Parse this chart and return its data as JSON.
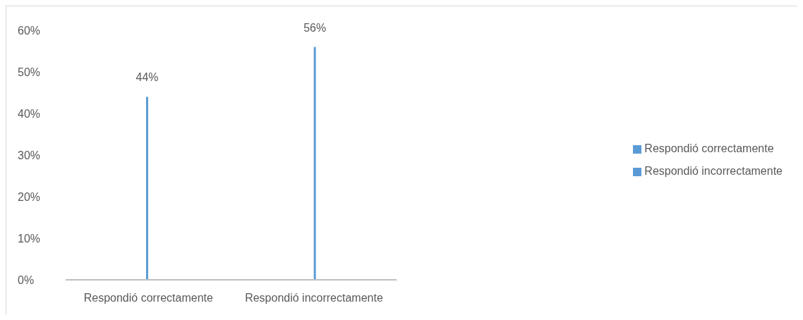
{
  "chart_data": {
    "type": "bar",
    "categories": [
      "Respondió correctamente",
      "Respondió incorrectamente"
    ],
    "series": [
      {
        "name": "Respondió correctamente",
        "color": "#5b9bd5",
        "values": [
          44,
          null
        ],
        "value_labels": [
          "44%",
          null
        ]
      },
      {
        "name": "Respondió incorrectamente",
        "color": "#5b9bd5",
        "values": [
          null,
          56
        ],
        "value_labels": [
          null,
          "56%"
        ]
      }
    ],
    "ylim": [
      0,
      60
    ],
    "yticks": [
      {
        "value": 0,
        "label": "0%"
      },
      {
        "value": 10,
        "label": "10%"
      },
      {
        "value": 20,
        "label": "20%"
      },
      {
        "value": 30,
        "label": "30%"
      },
      {
        "value": 40,
        "label": "40%"
      },
      {
        "value": 50,
        "label": "50%"
      },
      {
        "value": 60,
        "label": "60%"
      }
    ],
    "grid": false,
    "legend": "right"
  }
}
